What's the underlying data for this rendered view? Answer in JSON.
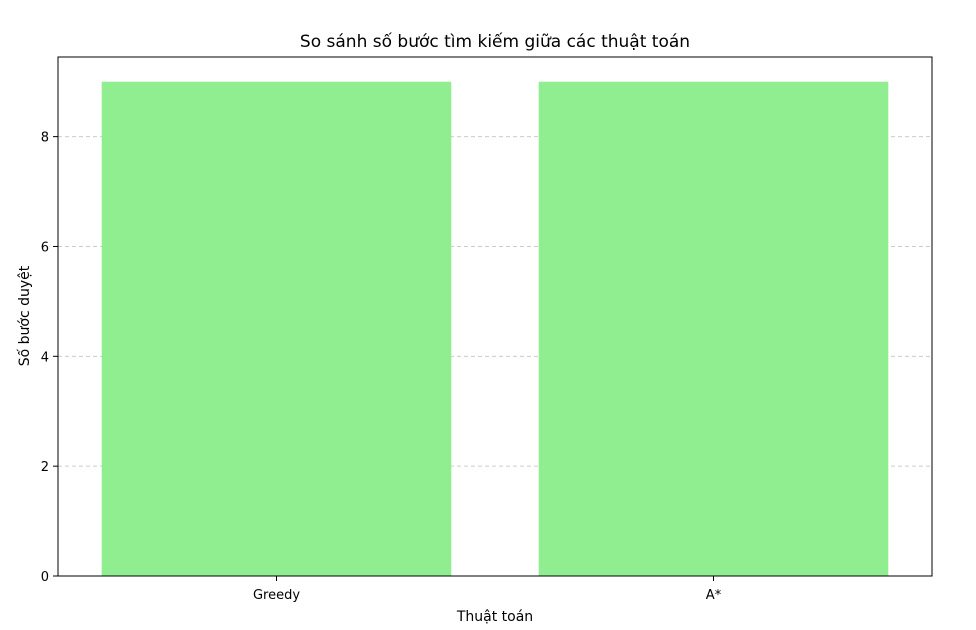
{
  "chart_data": {
    "type": "bar",
    "title": "So sánh số bước tìm kiếm giữa các thuật toán",
    "xlabel": "Thuật toán",
    "ylabel": "Số bước duyệt",
    "categories": [
      "Greedy",
      "A*"
    ],
    "values": [
      9,
      9
    ],
    "ylim": [
      0,
      9.45
    ],
    "yticks": [
      0,
      2,
      4,
      6,
      8
    ],
    "grid": "y-dashed",
    "bar_color": "#90ee90",
    "grid_color": "#cccccc"
  }
}
